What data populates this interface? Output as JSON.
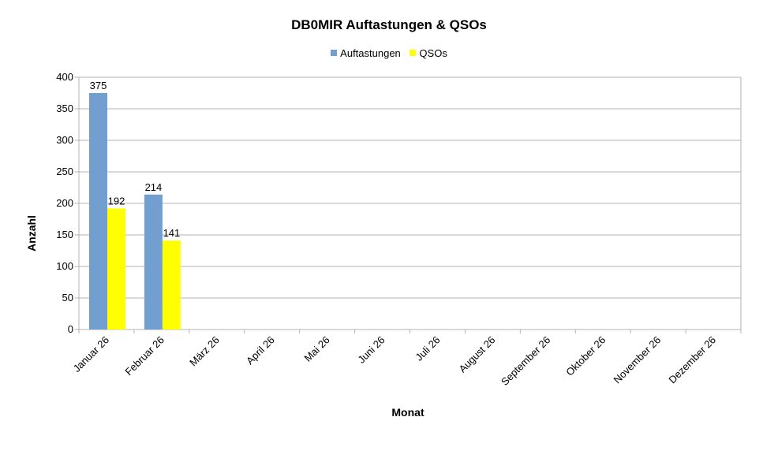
{
  "chart_data": {
    "type": "bar",
    "title": "DB0MIR Auftastungen & QSOs",
    "xlabel": "Monat",
    "ylabel": "Anzahl",
    "ylim": [
      0,
      400
    ],
    "yticks": [
      0,
      50,
      100,
      150,
      200,
      250,
      300,
      350,
      400
    ],
    "grid": true,
    "legend_position": "top",
    "categories": [
      "Januar 26",
      "Februar 26",
      "März 26",
      "April 26",
      "Mai 26",
      "Juni 26",
      "Juli 26",
      "August 26",
      "September 26",
      "Oktober 26",
      "November 26",
      "Dezember 26"
    ],
    "series": [
      {
        "name": "Auftastungen",
        "color": "#729fcf",
        "values": [
          375,
          214,
          null,
          null,
          null,
          null,
          null,
          null,
          null,
          null,
          null,
          null
        ]
      },
      {
        "name": "QSOs",
        "color": "#ffff00",
        "values": [
          192,
          141,
          null,
          null,
          null,
          null,
          null,
          null,
          null,
          null,
          null,
          null
        ]
      }
    ]
  }
}
